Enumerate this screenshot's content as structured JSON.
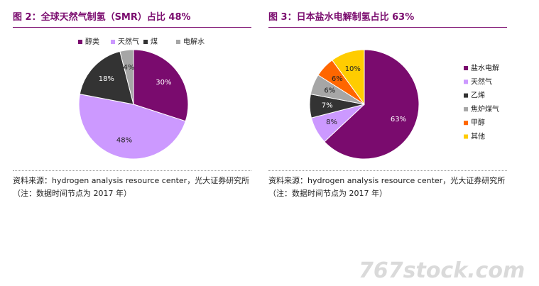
{
  "chart_data": [
    {
      "type": "pie",
      "title": "图 2：全球天然气制氢（SMR）占比 48%",
      "categories": [
        "醇类",
        "天然气",
        "煤",
        "电解水"
      ],
      "values": [
        30,
        48,
        18,
        4
      ],
      "value_labels": [
        "30%",
        "48%",
        "18%",
        "4%"
      ],
      "colors": [
        "#7a0b6e",
        "#cc99ff",
        "#333333",
        "#a6a6a6"
      ],
      "legend": "top",
      "source": "资料来源：hydrogen analysis resource center，光大证券研究所（注：数据时间节点为 2017 年）"
    },
    {
      "type": "pie",
      "title": "图 3：日本盐水电解制氢占比 63%",
      "categories": [
        "盐水电解",
        "天然气",
        "乙烯",
        "焦炉煤气",
        "甲醇",
        "其他"
      ],
      "values": [
        63,
        8,
        7,
        6,
        6,
        10
      ],
      "value_labels": [
        "63%",
        "8%",
        "7%",
        "6%",
        "6%",
        "10%"
      ],
      "colors": [
        "#7a0b6e",
        "#cc99ff",
        "#333333",
        "#a6a6a6",
        "#ff6600",
        "#ffcc00"
      ],
      "legend": "right",
      "source": "资料来源：hydrogen analysis resource center，光大证券研究所（注：数据时间节点为 2017 年）"
    }
  ],
  "watermark": "767stock.com"
}
